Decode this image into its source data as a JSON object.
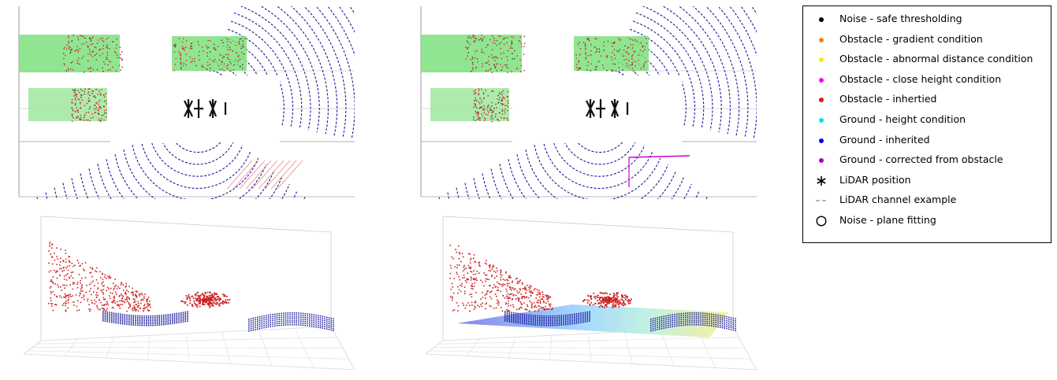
{
  "legend": {
    "items": [
      {
        "label": "Noise - safe thresholding",
        "color": "#000000",
        "icon": "dot-marker"
      },
      {
        "label": "Obstacle - gradient condition",
        "color": "#ff7f0e",
        "icon": "dot-marker"
      },
      {
        "label": "Obstacle - abnormal distance condition",
        "color": "#ffe600",
        "icon": "dot-marker"
      },
      {
        "label": "Obstacle - close height condition",
        "color": "#ff00ff",
        "icon": "dot-marker"
      },
      {
        "label": "Obstacle - inhertied",
        "color": "#ee1111",
        "icon": "dot-marker"
      },
      {
        "label": "Ground - height condition",
        "color": "#00e5e5",
        "icon": "dot-marker"
      },
      {
        "label": "Ground - inherited",
        "color": "#0000ee",
        "icon": "dot-marker"
      },
      {
        "label": "Ground - corrected from obstacle",
        "color": "#aa00cc",
        "icon": "dot-marker"
      },
      {
        "label": "LiDAR position",
        "color": "#000000",
        "icon": "asterisk-marker"
      },
      {
        "label": "LiDAR channel example",
        "color": "#888888",
        "icon": "dashed-line-marker"
      },
      {
        "label": "Noise - plane fitting",
        "color": "#000000",
        "icon": "open-circle-marker"
      }
    ]
  },
  "colors": {
    "obstacle_box_fill": "#7de07d",
    "ground_points": "#1a1a9a",
    "obstacle_points": "#cc2222"
  }
}
